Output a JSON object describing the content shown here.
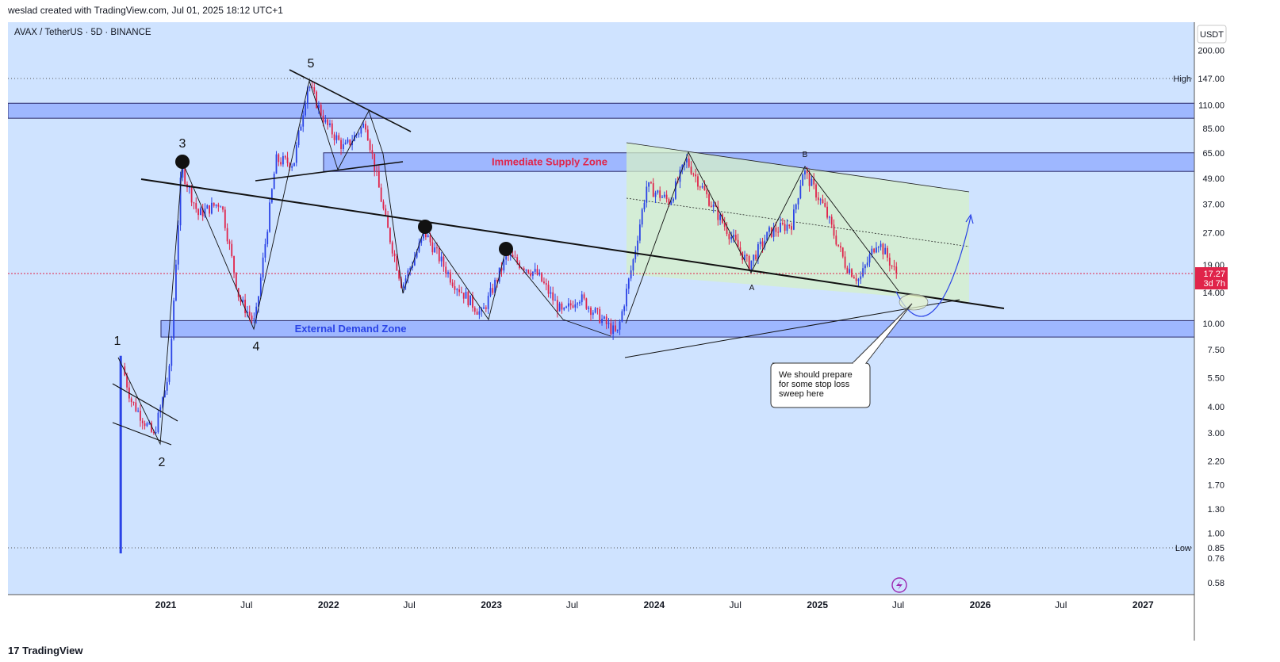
{
  "header": {
    "credit": "weslad created with TradingView.com, Jul 01, 2025 18:12 UTC+1"
  },
  "footer": {
    "logo_mark": "17",
    "logo_text": "TradingView"
  },
  "colors": {
    "bg": "#cfe3ff",
    "bull": "#2a43e6",
    "bear": "#e0244a",
    "zone": "#8ea8ff",
    "channel": "#d6f0c8",
    "price_line": "#e0244a"
  },
  "chart_data": {
    "type": "candlestick",
    "symbol": "AVAX / TetherUS · 5D · BINANCE",
    "currency": "USDT",
    "y_scale": "log",
    "y_ticks": [
      "200.00",
      "147.00",
      "110.00",
      "85.00",
      "65.00",
      "49.00",
      "37.00",
      "27.00",
      "19.00",
      "14.00",
      "10.00",
      "7.50",
      "5.50",
      "4.00",
      "3.00",
      "2.20",
      "1.70",
      "1.30",
      "1.00",
      "0.85",
      "0.76",
      "0.58"
    ],
    "x_ticks": [
      "2021",
      "Jul",
      "2022",
      "Jul",
      "2023",
      "Jul",
      "2024",
      "Jul",
      "2025",
      "Jul",
      "2026",
      "Jul",
      "2027"
    ],
    "high": {
      "label": "High",
      "value": "147.00"
    },
    "low": {
      "label": "Low",
      "value": "0.85"
    },
    "last_price": {
      "value": "17.27",
      "countdown": "3d 7h"
    },
    "zones": [
      {
        "name": "Immediate Supply Zone",
        "from": 53,
        "to": 65
      },
      {
        "name": "External Demand Zone",
        "from": 8.6,
        "to": 10.3
      },
      {
        "name": "",
        "from": 95,
        "to": 112
      }
    ],
    "wave_labels": [
      "1",
      "2",
      "3",
      "4",
      "5",
      "A",
      "B"
    ],
    "price_path": [
      {
        "d": "2020-09-22",
        "p": 0.85
      },
      {
        "d": "2020-09-25",
        "p": 7
      },
      {
        "d": "2020-10-20",
        "p": 4.3
      },
      {
        "d": "2020-12-10",
        "p": 2.9
      },
      {
        "d": "2021-01-15",
        "p": 6
      },
      {
        "d": "2021-02-10",
        "p": 55
      },
      {
        "d": "2021-03-20",
        "p": 33
      },
      {
        "d": "2021-05-10",
        "p": 38
      },
      {
        "d": "2021-06-20",
        "p": 13
      },
      {
        "d": "2021-07-25",
        "p": 10
      },
      {
        "d": "2021-09-10",
        "p": 60
      },
      {
        "d": "2021-10-20",
        "p": 58
      },
      {
        "d": "2021-11-21",
        "p": 140
      },
      {
        "d": "2021-12-30",
        "p": 90
      },
      {
        "d": "2022-02-10",
        "p": 68
      },
      {
        "d": "2022-03-30",
        "p": 90
      },
      {
        "d": "2022-05-15",
        "p": 30
      },
      {
        "d": "2022-06-20",
        "p": 15
      },
      {
        "d": "2022-08-10",
        "p": 27
      },
      {
        "d": "2022-10-10",
        "p": 16
      },
      {
        "d": "2022-12-15",
        "p": 11
      },
      {
        "d": "2023-02-10",
        "p": 21
      },
      {
        "d": "2023-04-20",
        "p": 17
      },
      {
        "d": "2023-06-15",
        "p": 11
      },
      {
        "d": "2023-07-20",
        "p": 13.5
      },
      {
        "d": "2023-10-15",
        "p": 8.8
      },
      {
        "d": "2023-11-20",
        "p": 20
      },
      {
        "d": "2023-12-20",
        "p": 45
      },
      {
        "d": "2024-02-10",
        "p": 38
      },
      {
        "d": "2024-03-18",
        "p": 60
      },
      {
        "d": "2024-05-20",
        "p": 35
      },
      {
        "d": "2024-08-05",
        "p": 19
      },
      {
        "d": "2024-09-20",
        "p": 27
      },
      {
        "d": "2024-11-10",
        "p": 30
      },
      {
        "d": "2024-12-05",
        "p": 54
      },
      {
        "d": "2025-01-20",
        "p": 36
      },
      {
        "d": "2025-03-10",
        "p": 19
      },
      {
        "d": "2025-04-10",
        "p": 16
      },
      {
        "d": "2025-05-20",
        "p": 25
      },
      {
        "d": "2025-06-10",
        "p": 21
      },
      {
        "d": "2025-07-01",
        "p": 17.27
      }
    ]
  },
  "annotations": {
    "callout": "We should prepare for some stop loss sweep here"
  }
}
